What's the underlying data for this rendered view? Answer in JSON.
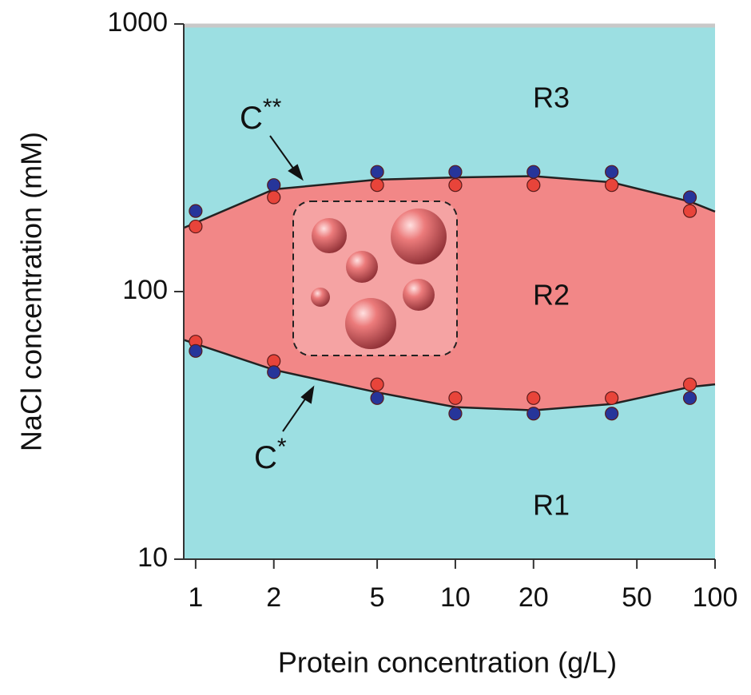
{
  "chart_data": {
    "type": "scatter",
    "xlabel": "Protein concentration (g/L)",
    "ylabel": "NaCl concentration (mM)",
    "xscale": "log",
    "yscale": "log",
    "xlim": [
      0.9,
      100
    ],
    "ylim": [
      10,
      1000
    ],
    "xticks": [
      1,
      2,
      5,
      10,
      20,
      50,
      100
    ],
    "yticks": [
      10,
      100,
      1000
    ],
    "background_color": "#9cdfe2",
    "region_color": "#f28787",
    "x": [
      1,
      2,
      5,
      10,
      20,
      40,
      80
    ],
    "series": [
      {
        "color": "#26359a",
        "values": [
          200,
          250,
          280,
          280,
          280,
          280,
          225
        ]
      },
      {
        "color": "#e8443a",
        "values": [
          175,
          225,
          250,
          250,
          250,
          250,
          200
        ]
      },
      {
        "color": "#e8443a",
        "values": [
          65,
          55,
          45,
          40,
          40,
          40,
          45
        ]
      },
      {
        "color": "#26359a",
        "values": [
          60,
          50,
          40,
          35,
          35,
          35,
          40
        ]
      }
    ],
    "boundaries": [
      {
        "x": [
          0.9,
          2,
          5,
          10,
          20,
          40,
          80,
          100
        ],
        "values": [
          173,
          241,
          262,
          267,
          270,
          256,
          217,
          199
        ]
      },
      {
        "x": [
          0.9,
          2,
          5,
          10,
          20,
          40,
          80,
          100
        ],
        "values": [
          66,
          51,
          42,
          37,
          36,
          38,
          44,
          45
        ]
      }
    ],
    "annotations": [
      {
        "text": "R3"
      },
      {
        "text": "R2"
      },
      {
        "text": "R1"
      },
      {
        "base": "C",
        "superscript": "**"
      },
      {
        "base": "C",
        "superscript": "*"
      }
    ]
  }
}
